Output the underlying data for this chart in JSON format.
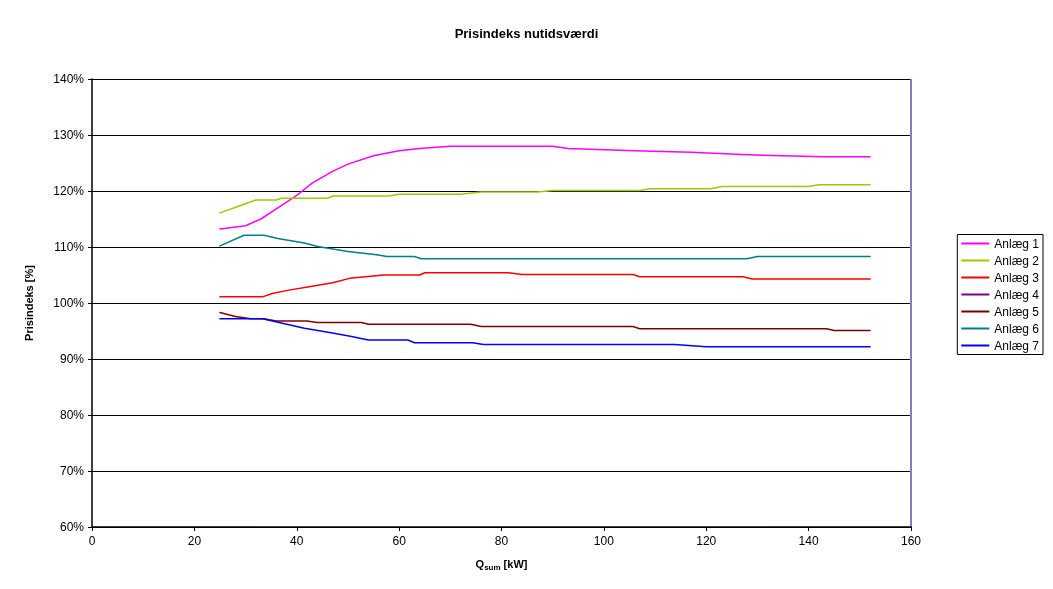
{
  "chart_data": {
    "type": "line",
    "title": "Prisindeks nutidsværdi",
    "xlabel": "Q$_{sum}$ [kW]",
    "ylabel": "Prisindeks [%]",
    "xlim": [
      0,
      160
    ],
    "xticks": [
      0,
      20,
      40,
      60,
      80,
      100,
      120,
      140,
      160
    ],
    "ylim": [
      60,
      140
    ],
    "yticks": [
      {
        "value": 60,
        "label": "60%"
      },
      {
        "value": 70,
        "label": "70%"
      },
      {
        "value": 80,
        "label": "80%"
      },
      {
        "value": 90,
        "label": "90%"
      },
      {
        "value": 100,
        "label": "100%"
      },
      {
        "value": 110,
        "label": "110%"
      },
      {
        "value": 120,
        "label": "120%"
      },
      {
        "value": 130,
        "label": "130%"
      },
      {
        "value": 140,
        "label": "140%"
      }
    ],
    "grid": "y",
    "legend": "right",
    "marker": "none",
    "line_style": "solid",
    "series": [
      {
        "name": "Anlæg 1",
        "color": "#ff00ff",
        "x": [
          25,
          30,
          33,
          36,
          40,
          43,
          47,
          50,
          55,
          60,
          64,
          70,
          90,
          93,
          106,
          117,
          127,
          143,
          152
        ],
        "values": [
          113.2,
          113.8,
          115,
          116.8,
          119.2,
          121.4,
          123.5,
          124.8,
          126.3,
          127.2,
          127.6,
          128.0,
          128.0,
          127.6,
          127.2,
          126.9,
          126.5,
          126.1,
          126.1
        ]
      },
      {
        "name": "Anlæg 2",
        "color": "#99cc00",
        "x": [
          25,
          29.6,
          32,
          36,
          37,
          46,
          47,
          58,
          60,
          72,
          76,
          87,
          90,
          107,
          109,
          121,
          123,
          140,
          142,
          152
        ],
        "values": [
          116.1,
          117.6,
          118.4,
          118.4,
          118.7,
          118.7,
          119.1,
          119.1,
          119.4,
          119.4,
          119.8,
          119.8,
          120.1,
          120.1,
          120.4,
          120.4,
          120.8,
          120.8,
          121.1,
          121.1
        ]
      },
      {
        "name": "Anlæg 3",
        "color": "#ff0000",
        "x": [
          25,
          33.3,
          35.2,
          38.5,
          42.4,
          47,
          50.3,
          57,
          64,
          65,
          81.4,
          84,
          105.7,
          107,
          127.2,
          129,
          152
        ],
        "values": [
          101.1,
          101.1,
          101.7,
          102.3,
          102.9,
          103.6,
          104.4,
          105.0,
          105.0,
          105.4,
          105.4,
          105.1,
          105.1,
          104.7,
          104.7,
          104.3,
          104.3
        ]
      },
      {
        "name": "Anlæg 4",
        "color": "#800080"
      },
      {
        "name": "Anlæg 5",
        "color": "#800000",
        "x": [
          25,
          28,
          31,
          33.6,
          36,
          42,
          44,
          52.6,
          54,
          74,
          76,
          105.7,
          107,
          143.5,
          145,
          152
        ],
        "values": [
          98.3,
          97.6,
          97.2,
          97.2,
          96.8,
          96.8,
          96.5,
          96.5,
          96.2,
          96.2,
          95.8,
          95.8,
          95.4,
          95.4,
          95.1,
          95.1
        ]
      },
      {
        "name": "Anlæg 6",
        "color": "#008080",
        "x": [
          25,
          29.7,
          33.6,
          36.3,
          41.5,
          44.1,
          50,
          55.6,
          57.6,
          63,
          64.3,
          127.9,
          130,
          152
        ],
        "values": [
          110.2,
          112.1,
          112.1,
          111.5,
          110.7,
          110.1,
          109.2,
          108.6,
          108.3,
          108.3,
          107.9,
          107.9,
          108.3,
          108.3
        ]
      },
      {
        "name": "Anlæg 7",
        "color": "#0000ff",
        "x": [
          25,
          33.3,
          37.2,
          41.5,
          46.7,
          50.7,
          54,
          61.7,
          63,
          74.3,
          76.5,
          113.8,
          120,
          152
        ],
        "values": [
          97.2,
          97.2,
          96.4,
          95.5,
          94.7,
          94.0,
          93.4,
          93.4,
          92.9,
          92.9,
          92.6,
          92.6,
          92.2,
          92.2
        ]
      }
    ]
  }
}
